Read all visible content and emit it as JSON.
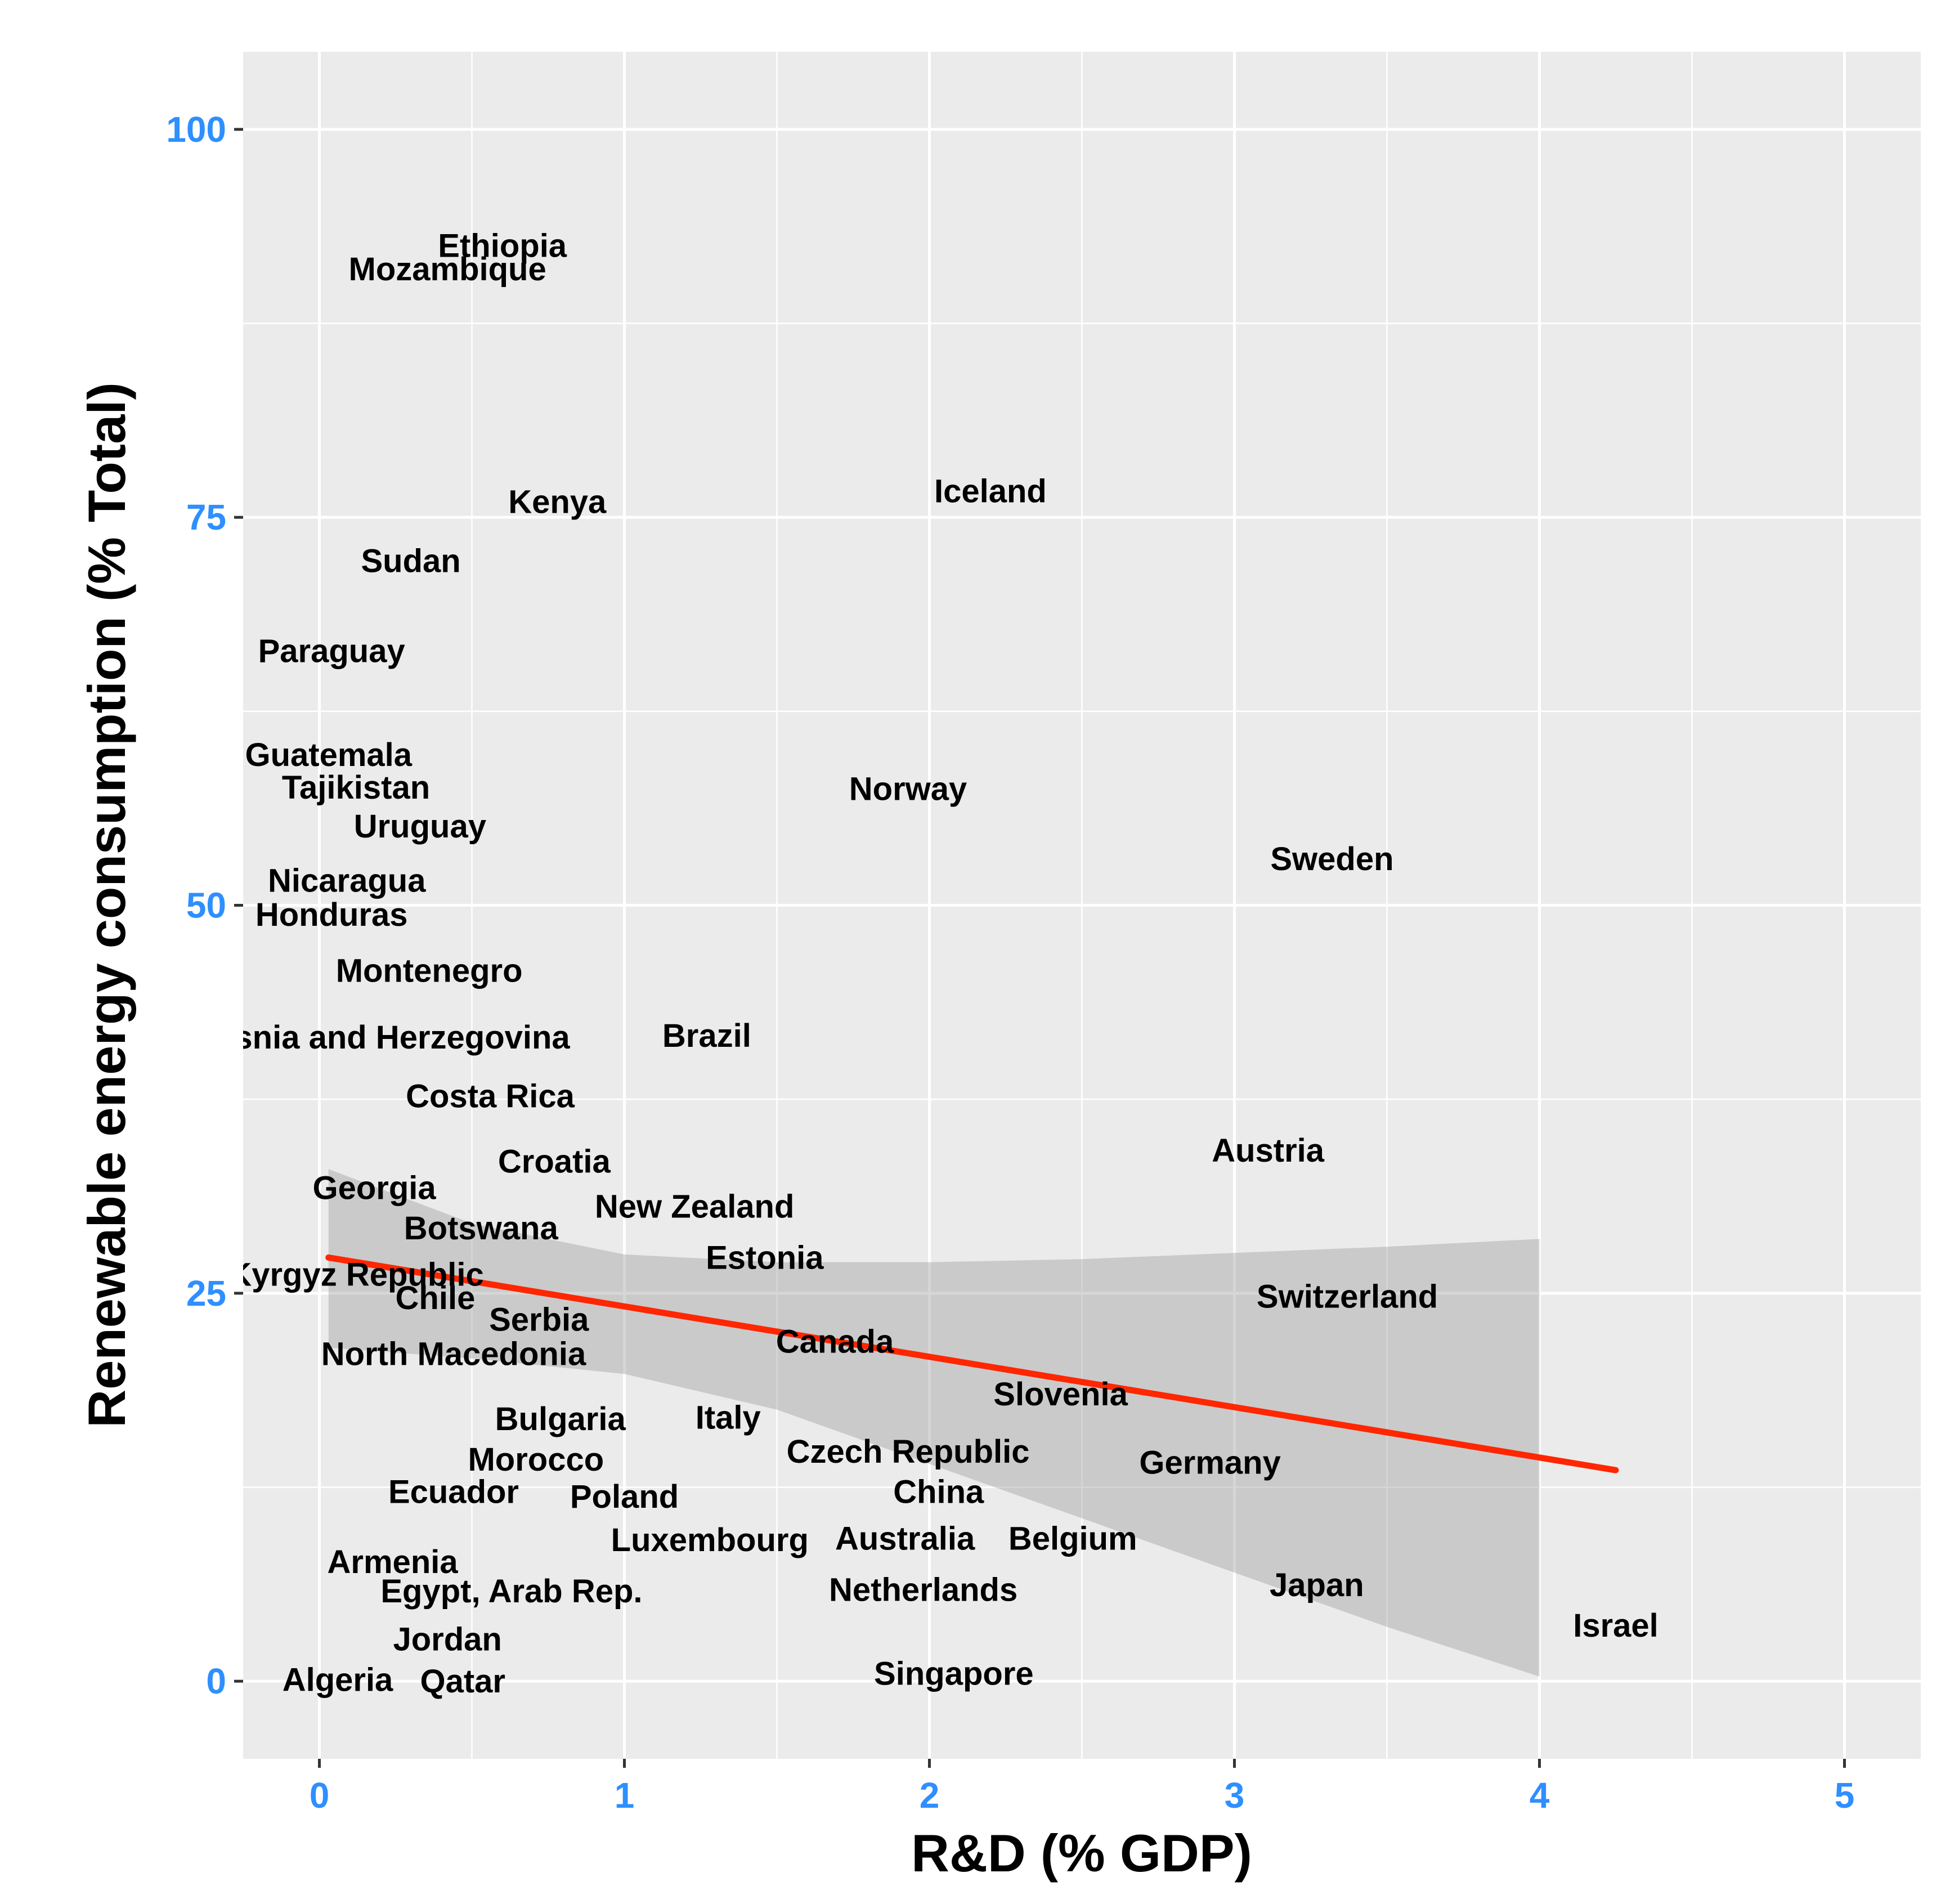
{
  "colors": {
    "panel": "#ebebeb",
    "grid": "#ffffff",
    "tick_label": "#2e8fff",
    "point_label": "#000000",
    "trend_line": "#ff2600",
    "confidence_band": "#999999"
  },
  "chart_data": {
    "type": "scatter",
    "title": "",
    "xlabel": "R&D (% GDP)",
    "ylabel": "Renewable energy consumption (% Total)",
    "xlim": [
      -0.25,
      5.25
    ],
    "ylim": [
      -5,
      105
    ],
    "x_ticks": [
      0,
      1,
      2,
      3,
      4,
      5
    ],
    "y_ticks": [
      0,
      25,
      50,
      75,
      100
    ],
    "grid": true,
    "legend": "none",
    "points": [
      {
        "label": "Ethiopia",
        "x": 0.6,
        "y": 92.5
      },
      {
        "label": "Mozambique",
        "x": 0.42,
        "y": 91.0
      },
      {
        "label": "Kenya",
        "x": 0.78,
        "y": 76.0
      },
      {
        "label": "Iceland",
        "x": 2.2,
        "y": 76.7
      },
      {
        "label": "Sudan",
        "x": 0.3,
        "y": 72.2
      },
      {
        "label": "Paraguay",
        "x": 0.04,
        "y": 66.4
      },
      {
        "label": "Guatemala",
        "x": 0.03,
        "y": 59.7
      },
      {
        "label": "Tajikistan",
        "x": 0.12,
        "y": 57.6
      },
      {
        "label": "Norway",
        "x": 1.93,
        "y": 57.5
      },
      {
        "label": "Uruguay",
        "x": 0.33,
        "y": 55.1
      },
      {
        "label": "Sweden",
        "x": 3.32,
        "y": 53.0
      },
      {
        "label": "Nicaragua",
        "x": 0.09,
        "y": 51.6
      },
      {
        "label": "Honduras",
        "x": 0.04,
        "y": 49.4
      },
      {
        "label": "Montenegro",
        "x": 0.36,
        "y": 45.8
      },
      {
        "label": "Bosnia and Herzegovina",
        "x": 0.2,
        "y": 41.5
      },
      {
        "label": "Brazil",
        "x": 1.27,
        "y": 41.6
      },
      {
        "label": "Costa Rica",
        "x": 0.56,
        "y": 37.7
      },
      {
        "label": "Austria",
        "x": 3.11,
        "y": 34.2
      },
      {
        "label": "Croatia",
        "x": 0.77,
        "y": 33.5
      },
      {
        "label": "Georgia",
        "x": 0.18,
        "y": 31.8
      },
      {
        "label": "New Zealand",
        "x": 1.23,
        "y": 30.6
      },
      {
        "label": "Botswana",
        "x": 0.53,
        "y": 29.2
      },
      {
        "label": "Estonia",
        "x": 1.46,
        "y": 27.3
      },
      {
        "label": "Kyrgyz Republic",
        "x": 0.12,
        "y": 26.2
      },
      {
        "label": "Switzerland",
        "x": 3.37,
        "y": 24.8
      },
      {
        "label": "Chile",
        "x": 0.38,
        "y": 24.7
      },
      {
        "label": "Serbia",
        "x": 0.72,
        "y": 23.3
      },
      {
        "label": "Canada",
        "x": 1.69,
        "y": 21.9
      },
      {
        "label": "North Macedonia",
        "x": 0.44,
        "y": 21.1
      },
      {
        "label": "Slovenia",
        "x": 2.43,
        "y": 18.5
      },
      {
        "label": "Bulgaria",
        "x": 0.79,
        "y": 16.9
      },
      {
        "label": "Italy",
        "x": 1.34,
        "y": 17.0
      },
      {
        "label": "Czech Republic",
        "x": 1.93,
        "y": 14.8
      },
      {
        "label": "Morocco",
        "x": 0.71,
        "y": 14.3
      },
      {
        "label": "Germany",
        "x": 2.92,
        "y": 14.1
      },
      {
        "label": "Ecuador",
        "x": 0.44,
        "y": 12.2
      },
      {
        "label": "China",
        "x": 2.03,
        "y": 12.2
      },
      {
        "label": "Poland",
        "x": 1.0,
        "y": 11.9
      },
      {
        "label": "Luxembourg",
        "x": 1.28,
        "y": 9.1
      },
      {
        "label": "Australia",
        "x": 1.92,
        "y": 9.2
      },
      {
        "label": "Belgium",
        "x": 2.47,
        "y": 9.2
      },
      {
        "label": "Armenia",
        "x": 0.24,
        "y": 7.7
      },
      {
        "label": "Egypt, Arab Rep.",
        "x": 0.63,
        "y": 5.8
      },
      {
        "label": "Netherlands",
        "x": 1.98,
        "y": 5.9
      },
      {
        "label": "Japan",
        "x": 3.27,
        "y": 6.2
      },
      {
        "label": "Israel",
        "x": 4.25,
        "y": 3.6
      },
      {
        "label": "Jordan",
        "x": 0.42,
        "y": 2.7
      },
      {
        "label": "Algeria",
        "x": 0.06,
        "y": 0.1
      },
      {
        "label": "Qatar",
        "x": 0.47,
        "y": 0.0
      },
      {
        "label": "Singapore",
        "x": 2.08,
        "y": 0.5
      }
    ],
    "trend_line": {
      "x": [
        0.03,
        4.25
      ],
      "y": [
        27.3,
        13.6
      ]
    },
    "confidence_band": {
      "x": [
        0.03,
        0.5,
        1.0,
        1.5,
        2.0,
        2.5,
        3.0,
        3.5,
        4.0
      ],
      "lower": [
        21.5,
        20.8,
        19.8,
        17.5,
        14.0,
        10.5,
        7.0,
        3.5,
        0.3
      ],
      "upper": [
        33.0,
        29.5,
        27.5,
        27.0,
        27.0,
        27.2,
        27.6,
        28.0,
        28.5
      ]
    }
  }
}
